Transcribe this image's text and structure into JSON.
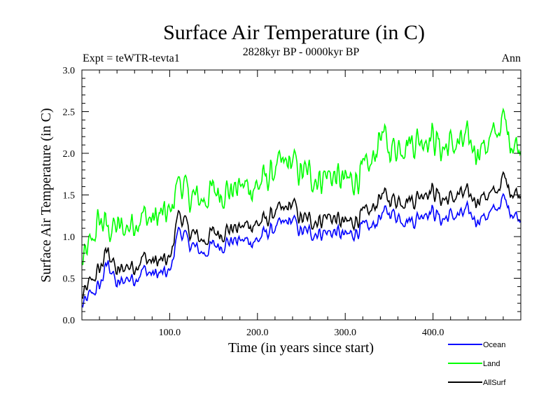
{
  "chart_data": {
    "type": "line",
    "title": "Surface Air Temperature (in C)",
    "subtitle": "2828kyr BP - 0000kyr BP",
    "expt_label": "Expt = teWTR-tevta1",
    "season_label": "Ann",
    "xlabel": "Time (in years since start)",
    "ylabel": "Surface Air Temperature (in C)",
    "xlim": [
      0,
      500
    ],
    "ylim": [
      0.0,
      3.0
    ],
    "xticks": [
      100,
      200,
      300,
      400
    ],
    "xtick_labels": [
      "100.0",
      "200.0",
      "300.0",
      "400.0"
    ],
    "yticks": [
      0.0,
      0.5,
      1.0,
      1.5,
      2.0,
      2.5,
      3.0
    ],
    "ytick_labels": [
      "0.0",
      "0.5",
      "1.0",
      "1.5",
      "2.0",
      "2.5",
      "3.0"
    ],
    "grid": false,
    "legend_position": "bottom-right",
    "x": [
      0,
      10,
      20,
      30,
      40,
      50,
      60,
      70,
      80,
      90,
      100,
      110,
      120,
      130,
      140,
      150,
      160,
      170,
      180,
      190,
      200,
      210,
      220,
      230,
      240,
      250,
      260,
      270,
      280,
      290,
      300,
      310,
      320,
      330,
      340,
      350,
      360,
      370,
      380,
      390,
      400,
      410,
      420,
      430,
      440,
      450,
      460,
      470,
      480,
      490,
      500
    ],
    "series": [
      {
        "name": "Ocean",
        "color": "#0000ff",
        "values": [
          0.15,
          0.3,
          0.4,
          0.7,
          0.4,
          0.5,
          0.5,
          0.6,
          0.55,
          0.55,
          0.55,
          1.1,
          0.95,
          0.85,
          0.8,
          0.9,
          0.9,
          0.95,
          0.95,
          0.95,
          0.95,
          1.05,
          1.1,
          1.15,
          1.2,
          1.05,
          1.05,
          1.05,
          1.05,
          1.05,
          1.0,
          1.05,
          1.1,
          1.1,
          1.25,
          1.3,
          1.25,
          1.2,
          1.2,
          1.3,
          1.3,
          1.2,
          1.25,
          1.25,
          1.3,
          1.2,
          1.25,
          1.3,
          1.45,
          1.3,
          1.2
        ]
      },
      {
        "name": "Land",
        "color": "#00ff00",
        "values": [
          0.65,
          0.9,
          1.2,
          1.1,
          1.1,
          1.1,
          1.2,
          1.25,
          1.2,
          1.25,
          1.25,
          1.7,
          1.5,
          1.45,
          1.45,
          1.55,
          1.55,
          1.55,
          1.6,
          1.6,
          1.6,
          1.7,
          1.8,
          1.85,
          1.9,
          1.75,
          1.75,
          1.7,
          1.75,
          1.7,
          1.65,
          1.7,
          1.75,
          1.85,
          2.25,
          2.05,
          2.1,
          2.15,
          2.15,
          2.2,
          2.2,
          2.05,
          2.1,
          2.1,
          2.15,
          2.05,
          2.1,
          2.2,
          2.4,
          2.15,
          2.05
        ]
      },
      {
        "name": "AllSurf",
        "color": "#000000",
        "values": [
          0.25,
          0.45,
          0.6,
          0.85,
          0.55,
          0.65,
          0.65,
          0.75,
          0.7,
          0.7,
          0.7,
          1.3,
          1.1,
          1.0,
          0.95,
          1.05,
          1.05,
          1.1,
          1.1,
          1.15,
          1.15,
          1.2,
          1.3,
          1.3,
          1.4,
          1.2,
          1.2,
          1.2,
          1.25,
          1.2,
          1.15,
          1.2,
          1.25,
          1.3,
          1.5,
          1.45,
          1.45,
          1.45,
          1.45,
          1.55,
          1.55,
          1.45,
          1.45,
          1.5,
          1.5,
          1.45,
          1.5,
          1.5,
          1.7,
          1.55,
          1.5
        ]
      }
    ]
  }
}
